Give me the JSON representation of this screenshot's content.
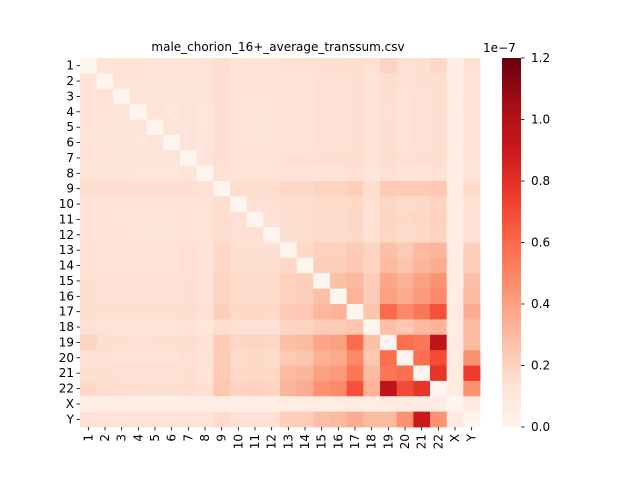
{
  "chart_data": {
    "type": "heatmap",
    "title": "male_chorion_16+_average_transsum.csv",
    "rows": [
      "1",
      "2",
      "3",
      "4",
      "5",
      "6",
      "7",
      "8",
      "9",
      "10",
      "11",
      "12",
      "13",
      "14",
      "15",
      "16",
      "17",
      "18",
      "19",
      "20",
      "21",
      "22",
      "X",
      "Y"
    ],
    "cols": [
      "1",
      "2",
      "3",
      "4",
      "5",
      "6",
      "7",
      "8",
      "9",
      "10",
      "11",
      "12",
      "13",
      "14",
      "15",
      "16",
      "17",
      "18",
      "19",
      "20",
      "21",
      "22",
      "X",
      "Y"
    ],
    "colorbar": {
      "min": 0.0,
      "max": 1.2,
      "ticks": [
        "0.0",
        "0.2",
        "0.4",
        "0.6",
        "0.8",
        "1.0",
        "1.2"
      ],
      "exponent_label": "1e−7",
      "colormap": "Reds"
    },
    "values": [
      [
        0,
        0.13,
        0.13,
        0.13,
        0.12,
        0.12,
        0.13,
        0.12,
        0.16,
        0.13,
        0.13,
        0.13,
        0.14,
        0.14,
        0.15,
        0.15,
        0.16,
        0.14,
        0.2,
        0.14,
        0.15,
        0.18,
        0.05,
        0.14
      ],
      [
        0.13,
        0,
        0.13,
        0.12,
        0.12,
        0.12,
        0.12,
        0.12,
        0.15,
        0.13,
        0.13,
        0.13,
        0.13,
        0.13,
        0.14,
        0.14,
        0.15,
        0.12,
        0.16,
        0.14,
        0.15,
        0.16,
        0.05,
        0.13
      ],
      [
        0.13,
        0.13,
        0,
        0.12,
        0.12,
        0.12,
        0.12,
        0.12,
        0.15,
        0.13,
        0.12,
        0.13,
        0.13,
        0.13,
        0.14,
        0.14,
        0.15,
        0.12,
        0.15,
        0.13,
        0.14,
        0.16,
        0.05,
        0.13
      ],
      [
        0.13,
        0.12,
        0.12,
        0,
        0.12,
        0.11,
        0.12,
        0.11,
        0.15,
        0.12,
        0.12,
        0.12,
        0.13,
        0.13,
        0.14,
        0.14,
        0.15,
        0.12,
        0.14,
        0.13,
        0.14,
        0.15,
        0.05,
        0.13
      ],
      [
        0.12,
        0.12,
        0.12,
        0.12,
        0,
        0.12,
        0.12,
        0.11,
        0.15,
        0.12,
        0.12,
        0.12,
        0.13,
        0.13,
        0.14,
        0.14,
        0.15,
        0.12,
        0.15,
        0.13,
        0.14,
        0.15,
        0.05,
        0.13
      ],
      [
        0.12,
        0.12,
        0.12,
        0.11,
        0.12,
        0,
        0.12,
        0.11,
        0.15,
        0.12,
        0.12,
        0.12,
        0.13,
        0.13,
        0.14,
        0.14,
        0.15,
        0.12,
        0.15,
        0.13,
        0.14,
        0.15,
        0.05,
        0.13
      ],
      [
        0.13,
        0.12,
        0.12,
        0.12,
        0.12,
        0.12,
        0,
        0.12,
        0.15,
        0.13,
        0.13,
        0.13,
        0.14,
        0.14,
        0.15,
        0.15,
        0.16,
        0.13,
        0.16,
        0.14,
        0.15,
        0.16,
        0.05,
        0.13
      ],
      [
        0.12,
        0.12,
        0.12,
        0.11,
        0.11,
        0.11,
        0.12,
        0,
        0.14,
        0.12,
        0.12,
        0.12,
        0.12,
        0.12,
        0.13,
        0.13,
        0.14,
        0.11,
        0.14,
        0.12,
        0.13,
        0.14,
        0.05,
        0.12
      ],
      [
        0.16,
        0.15,
        0.15,
        0.15,
        0.15,
        0.15,
        0.15,
        0.14,
        0,
        0.16,
        0.16,
        0.16,
        0.18,
        0.18,
        0.2,
        0.2,
        0.22,
        0.16,
        0.24,
        0.23,
        0.24,
        0.25,
        0.06,
        0.17
      ],
      [
        0.13,
        0.13,
        0.13,
        0.12,
        0.12,
        0.12,
        0.13,
        0.12,
        0.16,
        0,
        0.14,
        0.14,
        0.15,
        0.15,
        0.17,
        0.17,
        0.18,
        0.14,
        0.19,
        0.17,
        0.18,
        0.2,
        0.05,
        0.14
      ],
      [
        0.13,
        0.13,
        0.12,
        0.12,
        0.12,
        0.12,
        0.13,
        0.12,
        0.16,
        0.14,
        0,
        0.14,
        0.15,
        0.15,
        0.17,
        0.17,
        0.19,
        0.14,
        0.2,
        0.18,
        0.19,
        0.21,
        0.05,
        0.14
      ],
      [
        0.13,
        0.13,
        0.13,
        0.12,
        0.12,
        0.12,
        0.13,
        0.12,
        0.16,
        0.14,
        0.14,
        0,
        0.15,
        0.15,
        0.17,
        0.17,
        0.18,
        0.14,
        0.19,
        0.17,
        0.18,
        0.2,
        0.05,
        0.14
      ],
      [
        0.14,
        0.13,
        0.13,
        0.13,
        0.13,
        0.13,
        0.14,
        0.12,
        0.18,
        0.15,
        0.15,
        0.15,
        0,
        0.18,
        0.21,
        0.21,
        0.24,
        0.2,
        0.28,
        0.24,
        0.3,
        0.32,
        0.06,
        0.22
      ],
      [
        0.14,
        0.13,
        0.13,
        0.13,
        0.13,
        0.13,
        0.14,
        0.12,
        0.18,
        0.15,
        0.15,
        0.15,
        0.18,
        0,
        0.22,
        0.22,
        0.25,
        0.2,
        0.3,
        0.26,
        0.32,
        0.35,
        0.06,
        0.22
      ],
      [
        0.15,
        0.14,
        0.14,
        0.14,
        0.14,
        0.14,
        0.15,
        0.13,
        0.2,
        0.17,
        0.17,
        0.17,
        0.21,
        0.22,
        0,
        0.28,
        0.31,
        0.23,
        0.38,
        0.34,
        0.4,
        0.45,
        0.06,
        0.28
      ],
      [
        0.15,
        0.14,
        0.14,
        0.14,
        0.14,
        0.14,
        0.15,
        0.13,
        0.2,
        0.17,
        0.17,
        0.17,
        0.21,
        0.22,
        0.28,
        0,
        0.33,
        0.23,
        0.4,
        0.36,
        0.42,
        0.48,
        0.06,
        0.3
      ],
      [
        0.16,
        0.15,
        0.15,
        0.15,
        0.15,
        0.15,
        0.16,
        0.14,
        0.22,
        0.18,
        0.19,
        0.18,
        0.24,
        0.25,
        0.31,
        0.33,
        0,
        0.26,
        0.6,
        0.48,
        0.55,
        0.68,
        0.07,
        0.35
      ],
      [
        0.14,
        0.12,
        0.12,
        0.12,
        0.12,
        0.12,
        0.13,
        0.11,
        0.16,
        0.14,
        0.14,
        0.14,
        0.2,
        0.2,
        0.23,
        0.23,
        0.26,
        0,
        0.28,
        0.25,
        0.3,
        0.33,
        0.06,
        0.3
      ],
      [
        0.2,
        0.16,
        0.15,
        0.14,
        0.15,
        0.15,
        0.16,
        0.14,
        0.24,
        0.19,
        0.2,
        0.19,
        0.28,
        0.3,
        0.38,
        0.4,
        0.6,
        0.28,
        0,
        0.58,
        0.55,
        0.95,
        0.07,
        0.3
      ],
      [
        0.14,
        0.14,
        0.13,
        0.13,
        0.13,
        0.13,
        0.14,
        0.12,
        0.23,
        0.17,
        0.18,
        0.17,
        0.24,
        0.26,
        0.34,
        0.36,
        0.48,
        0.25,
        0.58,
        0,
        0.58,
        0.7,
        0.07,
        0.45
      ],
      [
        0.15,
        0.15,
        0.14,
        0.14,
        0.14,
        0.14,
        0.15,
        0.13,
        0.24,
        0.18,
        0.19,
        0.18,
        0.3,
        0.32,
        0.4,
        0.42,
        0.55,
        0.3,
        0.55,
        0.58,
        0,
        0.78,
        0.07,
        0.75
      ],
      [
        0.18,
        0.16,
        0.16,
        0.15,
        0.15,
        0.15,
        0.16,
        0.14,
        0.25,
        0.2,
        0.21,
        0.2,
        0.32,
        0.35,
        0.45,
        0.48,
        0.68,
        0.33,
        0.95,
        0.7,
        0.78,
        0,
        0.07,
        0.45
      ],
      [
        0.05,
        0.05,
        0.05,
        0.05,
        0.05,
        0.05,
        0.05,
        0.05,
        0.06,
        0.05,
        0.05,
        0.05,
        0.06,
        0.06,
        0.06,
        0.06,
        0.07,
        0.06,
        0.07,
        0.07,
        0.07,
        0.07,
        0,
        0.08
      ],
      [
        0.14,
        0.13,
        0.13,
        0.13,
        0.13,
        0.13,
        0.13,
        0.12,
        0.17,
        0.14,
        0.14,
        0.14,
        0.22,
        0.22,
        0.28,
        0.3,
        0.35,
        0.3,
        0.3,
        0.45,
        0.9,
        0.45,
        0.08,
        0
      ]
    ]
  }
}
